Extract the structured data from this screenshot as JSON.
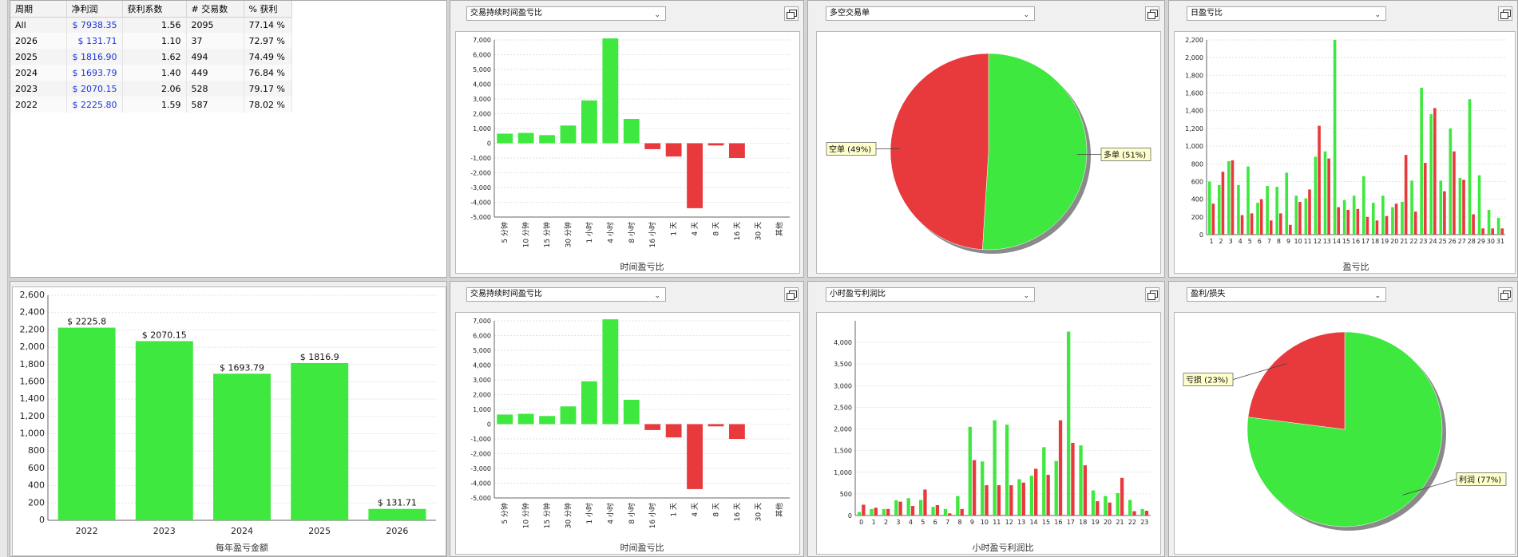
{
  "summary": {
    "headers": [
      "周期",
      "净利润",
      "获利系数",
      "# 交易数",
      "% 获利"
    ],
    "rows": [
      [
        "All",
        "$ 7938.35",
        "1.56",
        "2095",
        "77.14 %"
      ],
      [
        "2026",
        "$ 131.71",
        "1.10",
        "37",
        "72.97 %"
      ],
      [
        "2025",
        "$ 1816.90",
        "1.62",
        "494",
        "74.49 %"
      ],
      [
        "2024",
        "$ 1693.79",
        "1.40",
        "449",
        "76.84 %"
      ],
      [
        "2023",
        "$ 2070.15",
        "2.06",
        "528",
        "79.17 %"
      ],
      [
        "2022",
        "$ 2225.80",
        "1.59",
        "587",
        "78.02 %"
      ]
    ]
  },
  "panels": {
    "duration_top": {
      "selector": "交易持续时间盈亏比"
    },
    "long_short": {
      "selector": "多空交易单"
    },
    "daily": {
      "selector": "日盈亏比"
    },
    "duration_bottom": {
      "selector": "交易持续时间盈亏比"
    },
    "hourly": {
      "selector": "小时盈亏利润比"
    },
    "profit_loss": {
      "selector": "盈利/损失"
    }
  },
  "colors": {
    "green": "#3ee83e",
    "red": "#e8393d",
    "label_bg": "#ffffcc"
  },
  "chart_data": [
    {
      "id": "duration_top",
      "type": "bar",
      "xlabel": "时间盈亏比",
      "categories": [
        "5 分钟",
        "10 分钟",
        "15 分钟",
        "30 分钟",
        "1 小时",
        "4 小时",
        "8 小时",
        "16 小时",
        "1 天",
        "4 天",
        "8 天",
        "16 天",
        "30 天",
        "其他"
      ],
      "values": [
        650,
        700,
        550,
        1200,
        2900,
        7100,
        1650,
        -400,
        -900,
        -4400,
        -150,
        -1000,
        0,
        0
      ],
      "ylim": [
        -5000,
        7000
      ],
      "yticks": [
        7000,
        6000,
        5000,
        4000,
        3000,
        2000,
        1000,
        0,
        -1000,
        -2000,
        -3000,
        -4000,
        -5000
      ],
      "ytick_labels": [
        "7,000",
        "6,000",
        "5,000",
        "4,000",
        "3,000",
        "2,000",
        "1,000",
        "0",
        "-1,000",
        "-2,000",
        "-3,000",
        "-4,000",
        "-5,000"
      ]
    },
    {
      "id": "long_short",
      "type": "pie",
      "slices": [
        {
          "label": "多单 (51%)",
          "value": 51,
          "color": "green"
        },
        {
          "label": "空单 (49%)",
          "value": 49,
          "color": "red"
        }
      ]
    },
    {
      "id": "daily",
      "type": "bar",
      "xlabel": "盈亏比",
      "categories": [
        "1",
        "2",
        "3",
        "4",
        "5",
        "6",
        "7",
        "8",
        "9",
        "10",
        "11",
        "12",
        "13",
        "14",
        "15",
        "16",
        "17",
        "18",
        "19",
        "20",
        "21",
        "22",
        "23",
        "24",
        "25",
        "26",
        "27",
        "28",
        "29",
        "30",
        "31"
      ],
      "series": [
        {
          "name": "green",
          "values": [
            600,
            560,
            830,
            560,
            770,
            360,
            550,
            540,
            700,
            440,
            410,
            880,
            940,
            2200,
            390,
            440,
            660,
            360,
            440,
            310,
            370,
            610,
            1660,
            1360,
            610,
            1200,
            640,
            1530,
            670,
            280,
            190
          ]
        },
        {
          "name": "red",
          "values": [
            350,
            710,
            840,
            220,
            240,
            400,
            160,
            240,
            110,
            370,
            510,
            1230,
            860,
            310,
            280,
            290,
            200,
            160,
            210,
            350,
            900,
            260,
            810,
            1430,
            490,
            940,
            620,
            230,
            70,
            70,
            70
          ]
        }
      ],
      "ylim": [
        0,
        2200
      ],
      "yticks": [
        0,
        200,
        400,
        600,
        800,
        1000,
        1200,
        1400,
        1600,
        1800,
        2000,
        2200
      ],
      "ytick_labels": [
        "0",
        "200",
        "400",
        "600",
        "800",
        "1,000",
        "1,200",
        "1,400",
        "1,600",
        "1,800",
        "2,000",
        "2,200"
      ]
    },
    {
      "id": "yearly",
      "type": "bar",
      "xlabel": "每年盈亏金额",
      "categories": [
        "2022",
        "2023",
        "2024",
        "2025",
        "2026"
      ],
      "values": [
        2225.8,
        2070.15,
        1693.79,
        1816.9,
        131.71
      ],
      "data_labels": [
        "$ 2225.8",
        "$ 2070.15",
        "$ 1693.79",
        "$ 1816.9",
        "$ 131.71"
      ],
      "ylim": [
        0,
        2600
      ],
      "yticks": [
        0,
        200,
        400,
        600,
        800,
        1000,
        1200,
        1400,
        1600,
        1800,
        2000,
        2200,
        2400,
        2600
      ],
      "ytick_labels": [
        "0",
        "200",
        "400",
        "600",
        "800",
        "1,000",
        "1,200",
        "1,400",
        "1,600",
        "1,800",
        "2,000",
        "2,200",
        "2,400",
        "2,600"
      ]
    },
    {
      "id": "duration_bottom",
      "type": "bar",
      "xlabel": "时间盈亏比",
      "categories": [
        "5 分钟",
        "10 分钟",
        "15 分钟",
        "30 分钟",
        "1 小时",
        "4 小时",
        "8 小时",
        "16 小时",
        "1 天",
        "4 天",
        "8 天",
        "16 天",
        "30 天",
        "其他"
      ],
      "values": [
        650,
        700,
        550,
        1200,
        2900,
        7100,
        1650,
        -400,
        -900,
        -4400,
        -150,
        -1000,
        0,
        0
      ],
      "ylim": [
        -5000,
        7000
      ],
      "yticks": [
        7000,
        6000,
        5000,
        4000,
        3000,
        2000,
        1000,
        0,
        -1000,
        -2000,
        -3000,
        -4000,
        -5000
      ],
      "ytick_labels": [
        "7,000",
        "6,000",
        "5,000",
        "4,000",
        "3,000",
        "2,000",
        "1,000",
        "0",
        "-1,000",
        "-2,000",
        "-3,000",
        "-4,000",
        "-5,000"
      ]
    },
    {
      "id": "hourly",
      "type": "bar",
      "xlabel": "小时盈亏利润比",
      "categories": [
        "0",
        "1",
        "2",
        "3",
        "4",
        "5",
        "6",
        "7",
        "8",
        "9",
        "10",
        "11",
        "12",
        "13",
        "14",
        "15",
        "16",
        "17",
        "18",
        "19",
        "20",
        "21",
        "22",
        "23"
      ],
      "series": [
        {
          "name": "green",
          "values": [
            80,
            150,
            150,
            350,
            400,
            360,
            200,
            150,
            450,
            2050,
            1250,
            2200,
            2100,
            840,
            920,
            1580,
            1260,
            4250,
            1620,
            580,
            450,
            520,
            360,
            150
          ]
        },
        {
          "name": "red",
          "values": [
            250,
            180,
            150,
            320,
            220,
            600,
            240,
            50,
            150,
            1280,
            700,
            700,
            700,
            760,
            1080,
            940,
            2200,
            1680,
            1160,
            330,
            300,
            870,
            100,
            110
          ]
        }
      ],
      "ylim": [
        0,
        4500
      ],
      "yticks": [
        0,
        500,
        1000,
        1500,
        2000,
        2500,
        3000,
        3500,
        4000
      ],
      "ytick_labels": [
        "0",
        "500",
        "1,000",
        "1,500",
        "2,000",
        "2,500",
        "3,000",
        "3,500",
        "4,000"
      ]
    },
    {
      "id": "profit_loss",
      "type": "pie",
      "slices": [
        {
          "label": "利润 (77%)",
          "value": 77,
          "color": "green"
        },
        {
          "label": "亏损 (23%)",
          "value": 23,
          "color": "red"
        }
      ]
    }
  ]
}
